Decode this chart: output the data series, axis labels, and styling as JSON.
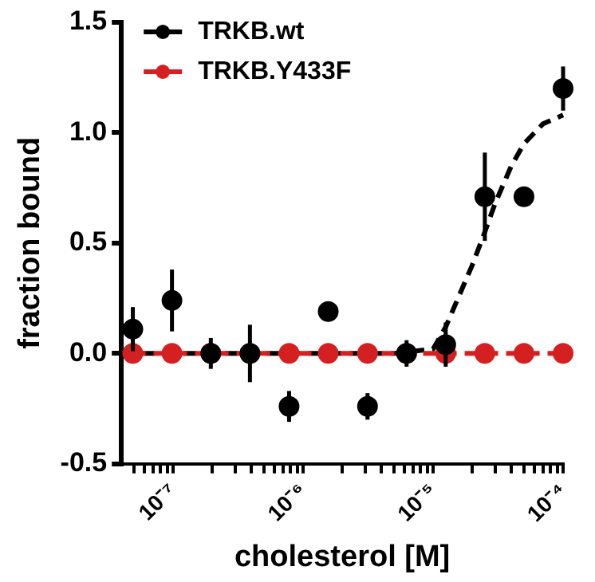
{
  "chart_data": {
    "type": "scatter",
    "xlabel": "cholesterol [M]",
    "ylabel": "fraction bound",
    "log": "x",
    "xlim": [
      4e-08,
      0.0001
    ],
    "xticks": [
      {
        "value": 5e-08,
        "label": null
      },
      {
        "value": 6e-08,
        "label": null
      },
      {
        "value": 7e-08,
        "label": null
      },
      {
        "value": 8e-08,
        "label": null
      },
      {
        "value": 9e-08,
        "label": null
      },
      {
        "value": 1e-07,
        "label": "10⁻⁷"
      },
      {
        "value": 2e-07,
        "label": null
      },
      {
        "value": 3e-07,
        "label": null
      },
      {
        "value": 4e-07,
        "label": null
      },
      {
        "value": 5e-07,
        "label": null
      },
      {
        "value": 6e-07,
        "label": null
      },
      {
        "value": 7e-07,
        "label": null
      },
      {
        "value": 8e-07,
        "label": null
      },
      {
        "value": 9e-07,
        "label": null
      },
      {
        "value": 1e-06,
        "label": "10⁻⁶"
      },
      {
        "value": 2e-06,
        "label": null
      },
      {
        "value": 3e-06,
        "label": null
      },
      {
        "value": 4e-06,
        "label": null
      },
      {
        "value": 5e-06,
        "label": null
      },
      {
        "value": 6e-06,
        "label": null
      },
      {
        "value": 7e-06,
        "label": null
      },
      {
        "value": 8e-06,
        "label": null
      },
      {
        "value": 9e-06,
        "label": null
      },
      {
        "value": 1e-05,
        "label": "10⁻⁵"
      },
      {
        "value": 2e-05,
        "label": null
      },
      {
        "value": 3e-05,
        "label": null
      },
      {
        "value": 4e-05,
        "label": null
      },
      {
        "value": 5e-05,
        "label": null
      },
      {
        "value": 6e-05,
        "label": null
      },
      {
        "value": 7e-05,
        "label": null
      },
      {
        "value": 8e-05,
        "label": null
      },
      {
        "value": 9e-05,
        "label": null
      },
      {
        "value": 0.0001,
        "label": "10⁻⁴"
      }
    ],
    "ylim": [
      -0.5,
      1.5
    ],
    "yticks": [
      {
        "value": -0.5,
        "label": "-0.5"
      },
      {
        "value": 0,
        "label": "0.0"
      },
      {
        "value": 0.5,
        "label": "0.5"
      },
      {
        "value": 1,
        "label": "1.0"
      },
      {
        "value": 1.5,
        "label": "1.5"
      }
    ],
    "grid": false,
    "legend": "top left",
    "series": [
      {
        "name": "TRKB.wt",
        "type": "scatter",
        "color": "#000000",
        "marker": "circle",
        "x": [
          4.9e-08,
          9.8e-08,
          1.95e-07,
          3.9e-07,
          7.8e-07,
          1.56e-06,
          3.13e-06,
          6.25e-06,
          1.25e-05,
          2.5e-05,
          5e-05,
          0.0001
        ],
        "values": [
          0.11,
          0.24,
          0,
          0,
          -0.24,
          0.19,
          -0.24,
          0,
          0.04,
          0.71,
          0.71,
          1.2
        ],
        "errors": [
          0.1,
          0.14,
          0.07,
          0.13,
          0.07,
          null,
          0.06,
          0.06,
          0.1,
          0.2,
          0.04,
          0.1
        ]
      },
      {
        "name": "TRKB.Y433F",
        "type": "line",
        "color": "#d42020",
        "marker": "circle",
        "line_style": "dashed",
        "x": [
          4.9e-08,
          9.8e-08,
          1.95e-07,
          3.9e-07,
          7.8e-07,
          1.56e-06,
          3.13e-06,
          6.25e-06,
          1.25e-05,
          2.5e-05,
          5e-05,
          0.0001
        ],
        "values": [
          0,
          0,
          0,
          0,
          0,
          0,
          0,
          0,
          0,
          0,
          0,
          0
        ]
      },
      {
        "type": "line",
        "color": "#000000",
        "marker": "none",
        "line_style": "dashed",
        "x": [
          4e-08,
          5e-06,
          1e-05,
          1.25e-05,
          2e-05,
          2.5e-05,
          3e-05,
          4e-05,
          5e-05,
          7e-05,
          0.0001
        ],
        "values": [
          0,
          0,
          0.02,
          0.12,
          0.4,
          0.55,
          0.68,
          0.85,
          0.95,
          1.04,
          1.08
        ]
      }
    ]
  }
}
